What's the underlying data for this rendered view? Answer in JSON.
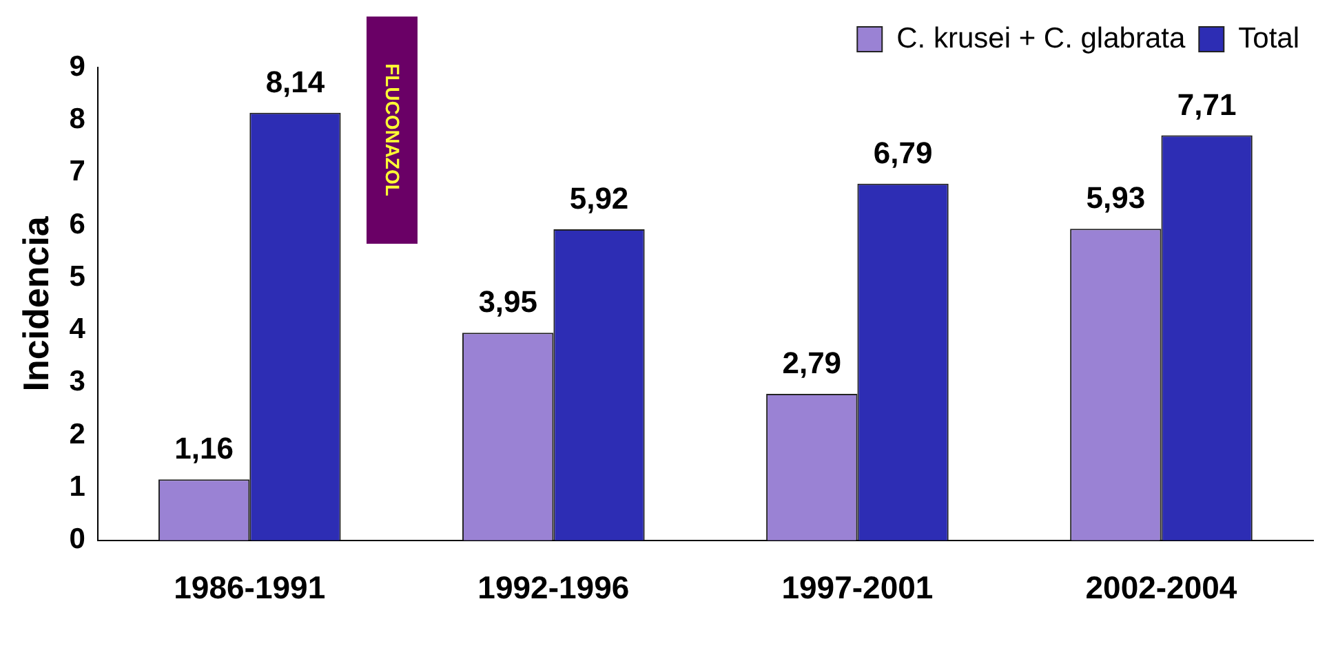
{
  "chart_data": {
    "type": "bar",
    "ylabel": "Incidencia",
    "categories": [
      "1986-1991",
      "1992-1996",
      "1997-2001",
      "2002-2004"
    ],
    "series": [
      {
        "name": "C. krusei + C. glabrata",
        "color": "#9a82d4",
        "values": [
          1.16,
          3.95,
          2.79,
          5.93
        ],
        "value_labels": [
          "1,16",
          "3,95",
          "2,79",
          "5,93"
        ]
      },
      {
        "name": "Total",
        "color": "#2d2db4",
        "values": [
          8.14,
          5.92,
          6.79,
          7.71
        ],
        "value_labels": [
          "8,14",
          "5,92",
          "6,79",
          "7,71"
        ]
      }
    ],
    "ylim": [
      0,
      9
    ],
    "yticks": [
      0,
      1,
      2,
      3,
      4,
      5,
      6,
      7,
      8,
      9
    ],
    "grid": false,
    "legend": "top right",
    "annotations": [
      "FLUCONAZOL"
    ]
  }
}
